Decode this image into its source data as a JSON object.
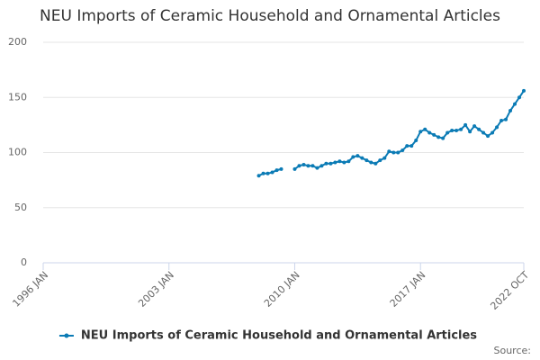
{
  "chart_data": {
    "type": "line",
    "title": "NEU Imports of Ceramic Household and Ornamental Articles",
    "source": "Source:",
    "x": [
      "2008 JAN",
      "2008 APR",
      "2008 JUL",
      "2008 OCT",
      "2009 JAN",
      "2009 APR",
      "2009 OCT",
      "2010 JAN",
      "2010 APR",
      "2010 JUL",
      "2010 OCT",
      "2011 JAN",
      "2011 APR",
      "2011 JUL",
      "2011 OCT",
      "2012 JAN",
      "2012 APR",
      "2012 JUL",
      "2012 OCT",
      "2013 JAN",
      "2013 APR",
      "2013 JUL",
      "2013 OCT",
      "2014 JAN",
      "2014 APR",
      "2014 JUL",
      "2014 OCT",
      "2015 JAN",
      "2015 APR",
      "2015 JUL",
      "2015 OCT",
      "2016 JAN",
      "2016 APR",
      "2016 JUL",
      "2016 OCT",
      "2017 JAN",
      "2017 APR",
      "2017 JUL",
      "2017 OCT",
      "2018 JAN",
      "2018 APR",
      "2018 JUL",
      "2018 OCT",
      "2019 JAN",
      "2019 APR",
      "2019 JUL",
      "2019 OCT",
      "2020 JAN",
      "2020 APR",
      "2020 JUL",
      "2020 OCT",
      "2021 JAN",
      "2021 APR",
      "2021 JUL",
      "2021 OCT",
      "2022 JAN",
      "2022 APR",
      "2022 JUL",
      "2022 OCT"
    ],
    "series": [
      {
        "name": "NEU Imports of Ceramic Household and Ornamental Articles",
        "color": "#0b7bb5",
        "values": [
          79,
          81,
          81,
          82,
          84,
          85,
          null,
          85,
          88,
          89,
          88,
          88,
          86,
          88,
          90,
          90,
          91,
          92,
          91,
          92,
          96,
          97,
          95,
          93,
          91,
          90,
          93,
          95,
          101,
          100,
          100,
          102,
          106,
          106,
          111,
          119,
          121,
          118,
          116,
          114,
          113,
          118,
          120,
          120,
          121,
          125,
          119,
          124,
          121,
          118,
          115,
          118,
          123,
          129,
          130,
          138,
          144,
          150,
          156
        ]
      }
    ],
    "xlim": [
      "1996 JAN",
      "2022 OCT"
    ],
    "xticks": [
      "1996 JAN",
      "2003 JAN",
      "2010 JAN",
      "2017 JAN",
      "2022 OCT"
    ],
    "ylim": [
      0,
      200
    ],
    "yticks": [
      0,
      50,
      100,
      150,
      200
    ],
    "grid": true
  }
}
